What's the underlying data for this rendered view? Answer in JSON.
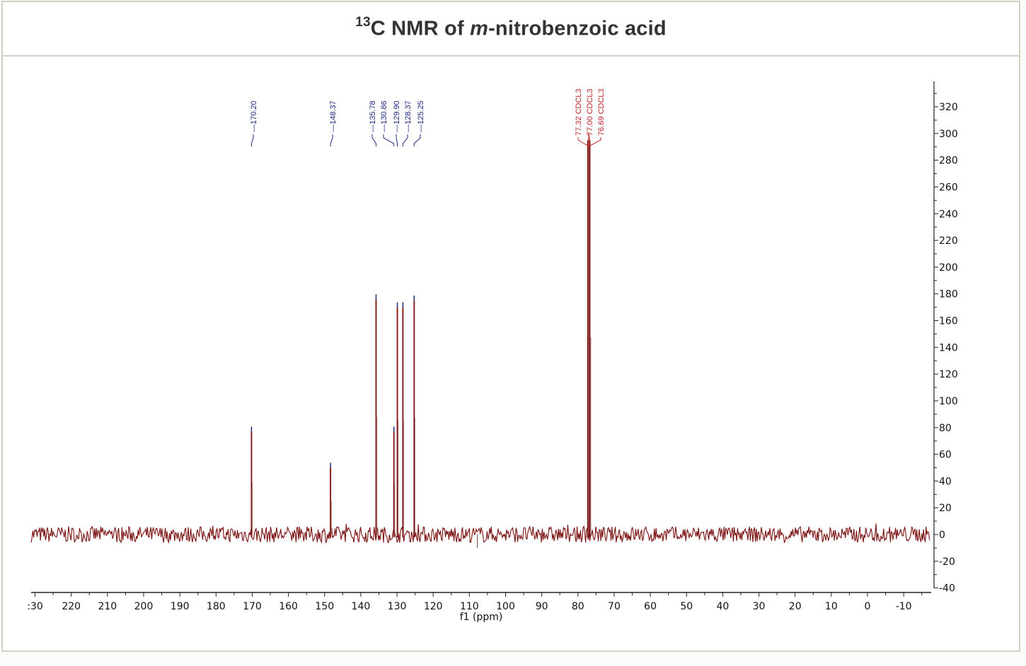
{
  "title": {
    "superscript": "13",
    "prefix": "C NMR of ",
    "italic": "m",
    "suffix": "-nitrobenzoic acid"
  },
  "colors": {
    "spectrum": "#7a0f0f",
    "compound_labels": "#1f2a80",
    "solvent_labels": "#c0282a",
    "axis": "#222222",
    "frame": "#d0d0c4",
    "title": "#333333"
  },
  "chart_data": {
    "type": "line",
    "title": "13C NMR of m-nitrobenzoic acid",
    "xlabel": "f1 (ppm)",
    "ylabel": "",
    "xlim": [
      230,
      -17
    ],
    "ylim": [
      -40,
      330
    ],
    "x_reversed": true,
    "grid": false,
    "x_ticks": [
      230,
      220,
      210,
      200,
      190,
      180,
      170,
      160,
      150,
      140,
      130,
      120,
      110,
      100,
      90,
      80,
      70,
      60,
      50,
      40,
      30,
      20,
      10,
      0,
      -10
    ],
    "x_tick_labels": [
      ":30",
      "220",
      "210",
      "200",
      "190",
      "180",
      "170",
      "160",
      "150",
      "140",
      "130",
      "120",
      "110",
      "100",
      "90",
      "80",
      "70",
      "60",
      "50",
      "40",
      "30",
      "20",
      "10",
      "0",
      "-10"
    ],
    "y_ticks": [
      -40,
      -20,
      0,
      20,
      40,
      60,
      80,
      100,
      120,
      140,
      160,
      180,
      200,
      220,
      240,
      260,
      280,
      300,
      320
    ],
    "y_axis_position": "right",
    "baseline_noise_amplitude": 3,
    "peaks": [
      {
        "ppm": 170.2,
        "intensity": 77,
        "label": "170.20",
        "group": "compound"
      },
      {
        "ppm": 148.37,
        "intensity": 50,
        "label": "148.37",
        "group": "compound"
      },
      {
        "ppm": 135.78,
        "intensity": 176,
        "label": "135.78",
        "group": "compound"
      },
      {
        "ppm": 130.86,
        "intensity": 77,
        "label": "130.86",
        "group": "compound"
      },
      {
        "ppm": 129.9,
        "intensity": 170,
        "label": "129.90",
        "group": "compound"
      },
      {
        "ppm": 128.37,
        "intensity": 170,
        "label": "128.37",
        "group": "compound"
      },
      {
        "ppm": 125.25,
        "intensity": 175,
        "label": "125.25",
        "group": "compound"
      },
      {
        "ppm": 77.32,
        "intensity": 295,
        "label": "77.32 CDCL3",
        "group": "solvent"
      },
      {
        "ppm": 77.0,
        "intensity": 300,
        "label": "77.00 CDCL3",
        "group": "solvent"
      },
      {
        "ppm": 76.69,
        "intensity": 295,
        "label": "76.69 CDCL3",
        "group": "solvent"
      }
    ],
    "annotations": [
      "170.20",
      "148.37",
      "135.78",
      "130.86",
      "129.90",
      "128.37",
      "125.25",
      "77.32 CDCL3",
      "77.00 CDCL3",
      "76.69 CDCL3"
    ]
  }
}
